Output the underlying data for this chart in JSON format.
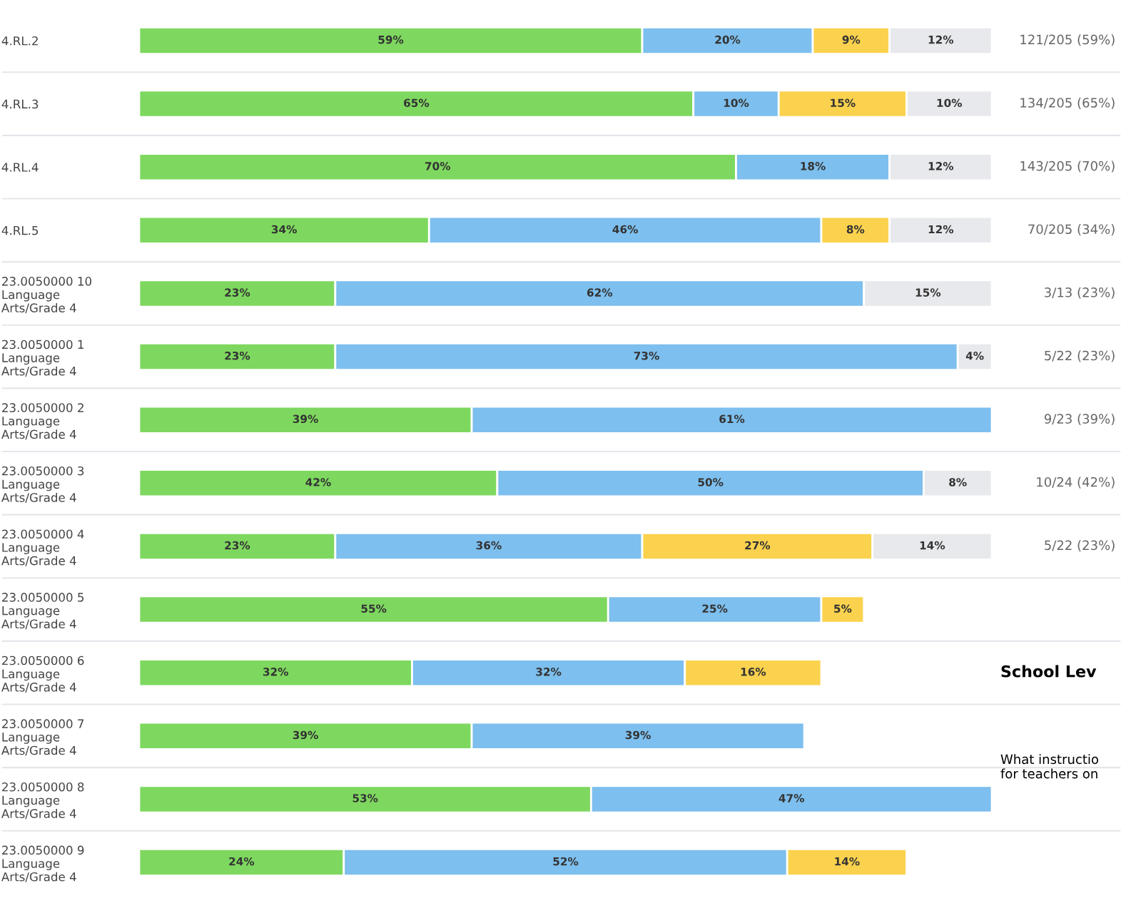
{
  "chart_data": {
    "type": "bar",
    "orientation": "horizontal",
    "stacked": true,
    "xlim": [
      0,
      100
    ],
    "tick_labels": "y",
    "grid": false,
    "legend": false,
    "categories": [
      "4.RL.2",
      "4.RL.3",
      "4.RL.4",
      "4.RL.5",
      "23.0050000 10\nLanguage\nArts/Grade 4",
      "23.0050000 1\nLanguage\nArts/Grade 4",
      "23.0050000 2\nLanguage\nArts/Grade 4",
      "23.0050000 3\nLanguage\nArts/Grade 4",
      "23.0050000 4\nLanguage\nArts/Grade 4",
      "23.0050000 5\nLanguage\nArts/Grade 4",
      "23.0050000 6\nLanguage\nArts/Grade 4",
      "23.0050000 7\nLanguage\nArts/Grade 4",
      "23.0050000 8\nLanguage\nArts/Grade 4",
      "23.0050000 9\nLanguage\nArts/Grade 4"
    ],
    "series": [
      {
        "color": "#7ed85f",
        "values": [
          59,
          65,
          70,
          34,
          23,
          23,
          39,
          42,
          23,
          55,
          32,
          39,
          53,
          24
        ],
        "value_labels": [
          "59%",
          "65%",
          "70%",
          "34%",
          "23%",
          "23%",
          "39%",
          "42%",
          "23%",
          "55%",
          "32%",
          "39%",
          "53%",
          "24%"
        ]
      },
      {
        "color": "#7dbfee",
        "values": [
          20,
          10,
          18,
          46,
          62,
          73,
          61,
          50,
          36,
          25,
          32,
          39,
          47,
          52
        ],
        "value_labels": [
          "20%",
          "10%",
          "18%",
          "46%",
          "62%",
          "73%",
          "61%",
          "50%",
          "36%",
          "25%",
          "32%",
          "39%",
          "47%",
          "52%"
        ]
      },
      {
        "color": "#fbd24e",
        "values": [
          9,
          15,
          0,
          8,
          0,
          0,
          0,
          0,
          27,
          5,
          16,
          null,
          null,
          14
        ],
        "value_labels": [
          "9%",
          "15%",
          null,
          "8%",
          null,
          null,
          null,
          null,
          "27%",
          "5%",
          "16%",
          null,
          null,
          "14%"
        ]
      },
      {
        "color": "#e8e9ec",
        "values": [
          12,
          10,
          12,
          12,
          15,
          4,
          0,
          8,
          14,
          null,
          null,
          null,
          null,
          null
        ],
        "value_labels": [
          "12%",
          "10%",
          "12%",
          "12%",
          "15%",
          "4%",
          null,
          "8%",
          "14%",
          null,
          null,
          null,
          null,
          null
        ]
      }
    ],
    "annotations": [
      "121/205 (59%)",
      "134/205 (65%)",
      "143/205 (70%)",
      "70/205 (34%)",
      "3/13 (23%)",
      "5/22 (23%)",
      "9/23 (39%)",
      "10/24 (42%)",
      "5/22 (23%)",
      "School Lev",
      "What instructio\nfor teachers on"
    ]
  }
}
